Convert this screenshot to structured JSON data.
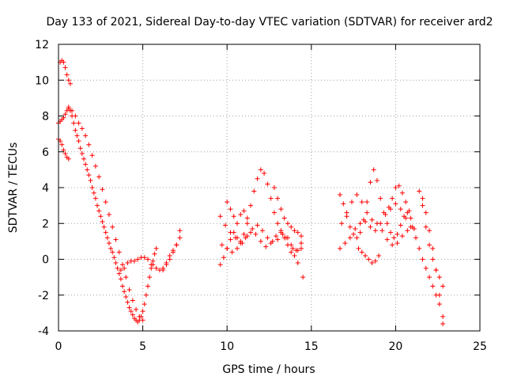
{
  "chart_data": {
    "type": "scatter",
    "title": "Day 133 of 2021, Sidereal Day-to-day VTEC variation (SDTVAR) for receiver ard2",
    "xlabel": "GPS time / hours",
    "ylabel": "SDTVAR / TECUs",
    "xlim": [
      0,
      25
    ],
    "ylim": [
      -4,
      12
    ],
    "x_ticks": [
      "0",
      "5",
      "10",
      "15",
      "20",
      "25"
    ],
    "y_ticks": [
      "-4",
      "-2",
      "0",
      "2",
      "4",
      "6",
      "8",
      "10",
      "12"
    ],
    "grid": true,
    "marker": "+",
    "color": "#ff0000",
    "series": [
      {
        "name": "trace-1",
        "x": [
          0.0,
          0.1,
          0.2,
          0.3,
          0.4,
          0.5,
          0.6,
          0.7,
          0.8,
          0.9,
          1.0,
          1.1,
          1.2,
          1.3,
          1.4,
          1.5,
          1.6,
          1.7,
          1.8,
          1.9,
          2.0,
          2.1,
          2.2,
          2.3,
          2.4,
          2.5,
          2.6,
          2.7,
          2.8,
          2.9,
          3.0,
          3.1,
          3.2,
          3.3,
          3.4,
          3.5,
          3.6,
          3.7,
          3.8,
          3.9,
          4.0,
          4.1,
          4.2,
          4.3,
          4.4,
          4.5,
          4.6,
          4.7,
          4.8,
          4.9,
          5.0,
          5.1,
          5.2,
          5.3,
          5.4,
          5.5,
          5.6,
          5.7,
          5.8
        ],
        "y": [
          7.6,
          7.7,
          7.8,
          7.9,
          8.1,
          8.3,
          8.4,
          8.3,
          8.0,
          7.6,
          7.2,
          6.9,
          6.6,
          6.2,
          5.9,
          5.6,
          5.3,
          5.0,
          4.7,
          4.4,
          4.0,
          3.7,
          3.4,
          3.0,
          2.7,
          2.4,
          2.1,
          1.8,
          1.5,
          1.2,
          0.9,
          0.6,
          0.4,
          0.1,
          -0.2,
          -0.5,
          -0.8,
          -1.1,
          -1.5,
          -1.8,
          -2.1,
          -2.4,
          -2.7,
          -2.9,
          -3.1,
          -3.3,
          -3.4,
          -3.5,
          -3.4,
          -3.2,
          -2.9,
          -2.5,
          -2.0,
          -1.5,
          -1.0,
          -0.5,
          -0.1,
          0.3,
          0.6
        ]
      },
      {
        "name": "trace-2",
        "x": [
          0.6,
          0.8,
          1.0,
          1.2,
          1.4,
          1.6,
          1.8,
          2.0,
          2.2,
          2.4,
          2.6,
          2.8,
          3.0,
          3.2,
          3.4,
          3.6,
          3.8,
          4.0,
          4.2,
          4.4,
          4.6,
          4.8,
          5.0
        ],
        "y": [
          8.5,
          8.3,
          8.0,
          7.6,
          7.3,
          6.9,
          6.4,
          5.8,
          5.2,
          4.6,
          3.9,
          3.2,
          2.5,
          1.8,
          1.1,
          0.4,
          -0.3,
          -1.0,
          -1.7,
          -2.3,
          -2.8,
          -3.2,
          -3.4
        ]
      },
      {
        "name": "trace-3",
        "x": [
          0.0,
          0.1,
          0.2,
          0.3,
          0.4,
          0.5,
          0.6
        ],
        "y": [
          6.7,
          6.6,
          6.4,
          6.1,
          5.9,
          5.7,
          5.6
        ]
      },
      {
        "name": "trace-4",
        "x": [
          0.1,
          0.2,
          0.3,
          0.4,
          0.5,
          0.6,
          0.7
        ],
        "y": [
          11.0,
          11.1,
          11.0,
          10.7,
          10.3,
          10.0,
          9.8
        ]
      },
      {
        "name": "trace-5",
        "x": [
          3.7,
          3.9,
          4.1,
          4.3,
          4.5,
          4.7,
          4.9,
          5.1,
          5.3,
          5.5
        ],
        "y": [
          -0.6,
          -0.5,
          -0.2,
          -0.1,
          -0.1,
          0.0,
          0.1,
          0.1,
          0.0,
          -0.3
        ]
      },
      {
        "name": "trace-6",
        "x": [
          5.6,
          5.8,
          6.0,
          6.2,
          6.4,
          6.6,
          6.8,
          7.0,
          7.2
        ],
        "y": [
          -0.3,
          -0.5,
          -0.6,
          -0.5,
          -0.3,
          0.0,
          0.4,
          0.8,
          1.2
        ]
      },
      {
        "name": "trace-7",
        "x": [
          6.2,
          6.4,
          6.6,
          6.8,
          7.0,
          7.2
        ],
        "y": [
          -0.6,
          -0.2,
          0.2,
          0.5,
          0.8,
          1.6
        ]
      },
      {
        "name": "trace-8",
        "x": [
          9.6,
          9.8,
          10.0,
          10.2,
          10.4,
          10.6,
          10.8,
          11.0,
          11.2,
          11.4,
          11.6,
          11.8,
          12.0,
          12.2,
          12.4,
          12.6,
          12.8,
          13.0,
          13.2,
          13.4,
          13.6,
          13.8,
          14.0,
          14.2,
          14.4
        ],
        "y": [
          -0.3,
          0.1,
          0.6,
          1.1,
          1.5,
          1.2,
          0.9,
          1.4,
          2.0,
          3.0,
          3.8,
          4.5,
          5.0,
          4.8,
          4.2,
          3.4,
          2.6,
          2.0,
          1.6,
          1.2,
          0.8,
          0.4,
          0.2,
          0.5,
          0.9
        ]
      },
      {
        "name": "trace-9",
        "x": [
          9.6,
          9.9,
          10.2,
          10.5,
          10.8,
          11.1,
          11.4,
          11.7,
          12.0,
          12.3,
          12.6,
          12.9,
          13.2,
          13.5,
          13.8,
          14.1,
          14.4
        ],
        "y": [
          2.4,
          1.9,
          1.5,
          1.2,
          1.0,
          1.2,
          1.5,
          1.4,
          1.0,
          0.7,
          0.9,
          1.3,
          1.5,
          1.2,
          0.8,
          0.5,
          0.6
        ]
      },
      {
        "name": "trace-10",
        "x": [
          9.7,
          10.0,
          10.3,
          10.6,
          10.9,
          11.2,
          11.5,
          11.8,
          12.1,
          12.4,
          12.7,
          13.0,
          13.3,
          13.6,
          13.9,
          14.2,
          14.5
        ],
        "y": [
          0.8,
          0.6,
          0.4,
          0.6,
          0.9,
          1.3,
          1.7,
          1.9,
          1.6,
          1.2,
          1.0,
          1.1,
          1.4,
          1.2,
          0.6,
          -0.2,
          -1.0
        ]
      },
      {
        "name": "trace-11",
        "x": [
          10.0,
          10.2,
          10.4,
          10.6,
          10.8,
          11.0,
          11.2
        ],
        "y": [
          3.2,
          2.8,
          2.4,
          2.0,
          2.5,
          2.7,
          2.3
        ]
      },
      {
        "name": "trace-12",
        "x": [
          12.8,
          13.0,
          13.2,
          13.4,
          13.6,
          13.8,
          14.0,
          14.2,
          14.4
        ],
        "y": [
          4.0,
          3.4,
          2.8,
          2.3,
          2.0,
          1.8,
          1.6,
          1.5,
          1.3
        ]
      },
      {
        "name": "trace-13",
        "x": [
          16.7,
          16.9,
          17.1,
          17.3,
          17.5,
          17.7,
          17.9,
          18.1,
          18.3,
          18.5,
          18.7,
          18.9,
          19.1,
          19.3,
          19.5,
          19.7,
          19.9,
          20.1,
          20.3,
          20.5,
          20.7,
          20.9,
          21.1
        ],
        "y": [
          3.6,
          3.1,
          2.4,
          1.8,
          1.4,
          1.2,
          1.5,
          2.2,
          3.2,
          4.3,
          5.0,
          4.4,
          3.4,
          2.6,
          2.0,
          1.5,
          1.2,
          1.4,
          1.9,
          2.4,
          2.6,
          2.3,
          1.7
        ]
      },
      {
        "name": "trace-14",
        "x": [
          16.7,
          17.0,
          17.3,
          17.6,
          17.9,
          18.2,
          18.5,
          18.8,
          19.1,
          19.4,
          19.7,
          20.0,
          20.3,
          20.6,
          20.9
        ],
        "y": [
          0.6,
          0.9,
          1.2,
          1.7,
          2.0,
          2.1,
          1.8,
          1.6,
          2.0,
          2.5,
          2.8,
          3.1,
          2.8,
          2.3,
          1.8
        ]
      },
      {
        "name": "trace-15",
        "x": [
          16.8,
          17.1,
          17.4,
          17.7,
          18.0,
          18.3,
          18.6,
          18.9,
          19.2,
          19.5,
          19.8,
          20.1,
          20.4,
          20.7
        ],
        "y": [
          2.0,
          2.6,
          3.2,
          3.6,
          3.2,
          2.6,
          2.2,
          2.0,
          1.6,
          1.1,
          0.8,
          0.9,
          1.3,
          1.6
        ]
      },
      {
        "name": "trace-16",
        "x": [
          17.8,
          18.0,
          18.2,
          18.4,
          18.6,
          18.8,
          19.0
        ],
        "y": [
          0.6,
          0.4,
          0.2,
          0.0,
          -0.2,
          -0.1,
          0.2
        ]
      },
      {
        "name": "trace-17",
        "x": [
          19.6,
          19.8,
          20.0,
          20.2,
          20.4,
          20.6,
          20.8
        ],
        "y": [
          2.9,
          3.4,
          4.0,
          4.1,
          3.7,
          3.2,
          2.7
        ]
      },
      {
        "name": "trace-18",
        "x": [
          21.4,
          21.6,
          21.8,
          22.0,
          22.2,
          22.4,
          22.6,
          22.8
        ],
        "y": [
          3.8,
          3.4,
          2.6,
          1.6,
          0.6,
          -0.6,
          -2.0,
          -3.6
        ]
      },
      {
        "name": "trace-19",
        "x": [
          21.0,
          21.2,
          21.4,
          21.6,
          21.8,
          22.0,
          22.2,
          22.4,
          22.6,
          22.8
        ],
        "y": [
          1.8,
          1.2,
          0.6,
          0.0,
          -0.5,
          -1.0,
          -1.5,
          -2.0,
          -2.5,
          -3.2
        ]
      },
      {
        "name": "trace-20",
        "x": [
          21.6,
          21.8,
          22.0,
          22.2,
          22.4,
          22.6,
          22.8
        ],
        "y": [
          3.0,
          1.8,
          0.8,
          0.0,
          -0.6,
          -1.0,
          -1.5
        ]
      }
    ]
  }
}
